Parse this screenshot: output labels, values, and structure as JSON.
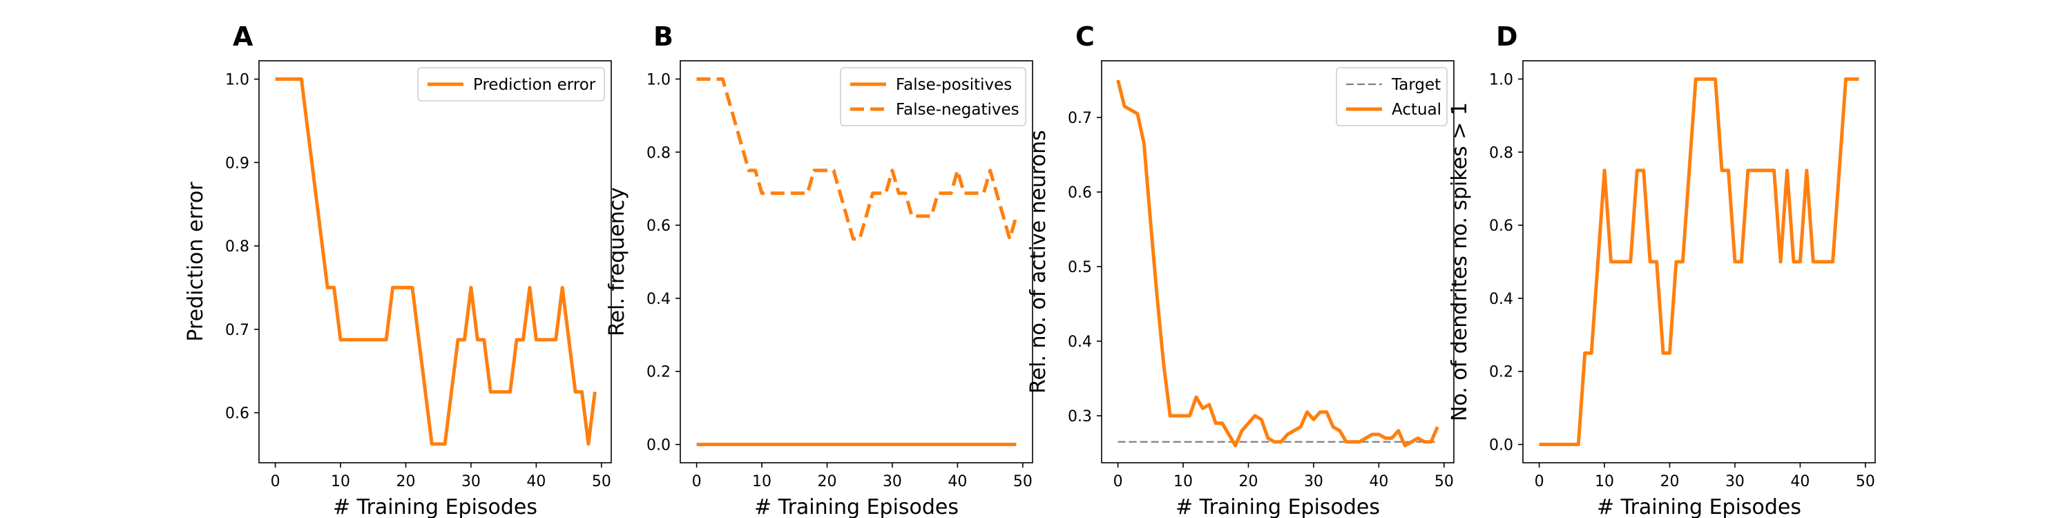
{
  "colors": {
    "series": "#ff7f0e",
    "target": "#7f7f7f",
    "axis": "#000000"
  },
  "chart_data": [
    {
      "letter": "A",
      "type": "line",
      "xlabel": "# Training Episodes",
      "ylabel": "Prediction error",
      "xlim": [
        -2.5,
        51.5
      ],
      "ylim": [
        0.54,
        1.022
      ],
      "xticks": [
        0,
        10,
        20,
        30,
        40,
        50
      ],
      "yticks": [
        0.6,
        0.7,
        0.8,
        0.9,
        1.0
      ],
      "ytick_labels": [
        "0.6",
        "0.7",
        "0.8",
        "0.9",
        "1.0"
      ],
      "legend": "top-right",
      "series": [
        {
          "name": "Prediction error",
          "style": "solid",
          "x": [
            0,
            1,
            2,
            3,
            4,
            5,
            6,
            7,
            8,
            9,
            10,
            11,
            12,
            13,
            14,
            15,
            16,
            17,
            18,
            19,
            20,
            21,
            22,
            23,
            24,
            25,
            26,
            27,
            28,
            29,
            30,
            31,
            32,
            33,
            34,
            35,
            36,
            37,
            38,
            39,
            40,
            41,
            42,
            43,
            44,
            45,
            46,
            47,
            48,
            49
          ],
          "y": [
            1.0,
            1.0,
            1.0,
            1.0,
            1.0,
            0.9375,
            0.875,
            0.8125,
            0.75,
            0.75,
            0.6875,
            0.6875,
            0.6875,
            0.6875,
            0.6875,
            0.6875,
            0.6875,
            0.6875,
            0.75,
            0.75,
            0.75,
            0.75,
            0.6875,
            0.625,
            0.5625,
            0.5625,
            0.5625,
            0.625,
            0.6875,
            0.6875,
            0.75,
            0.6875,
            0.6875,
            0.625,
            0.625,
            0.625,
            0.625,
            0.6875,
            0.6875,
            0.75,
            0.6875,
            0.6875,
            0.6875,
            0.6875,
            0.75,
            0.6875,
            0.625,
            0.625,
            0.5625,
            0.625
          ]
        }
      ]
    },
    {
      "letter": "B",
      "type": "line",
      "xlabel": "# Training Episodes",
      "ylabel": "Rel. frequency",
      "xlim": [
        -2.5,
        51.5
      ],
      "ylim": [
        -0.05,
        1.05
      ],
      "xticks": [
        0,
        10,
        20,
        30,
        40,
        50
      ],
      "yticks": [
        0.0,
        0.2,
        0.4,
        0.6,
        0.8,
        1.0
      ],
      "ytick_labels": [
        "0.0",
        "0.2",
        "0.4",
        "0.6",
        "0.8",
        "1.0"
      ],
      "legend": "top-right",
      "series": [
        {
          "name": "False-positives",
          "style": "solid",
          "x": [
            0,
            49
          ],
          "y": [
            0.0,
            0.0
          ]
        },
        {
          "name": "False-negatives",
          "style": "dashed",
          "x": [
            0,
            1,
            2,
            3,
            4,
            5,
            6,
            7,
            8,
            9,
            10,
            11,
            12,
            13,
            14,
            15,
            16,
            17,
            18,
            19,
            20,
            21,
            22,
            23,
            24,
            25,
            26,
            27,
            28,
            29,
            30,
            31,
            32,
            33,
            34,
            35,
            36,
            37,
            38,
            39,
            40,
            41,
            42,
            43,
            44,
            45,
            46,
            47,
            48,
            49
          ],
          "y": [
            1.0,
            1.0,
            1.0,
            1.0,
            1.0,
            0.9375,
            0.875,
            0.8125,
            0.75,
            0.75,
            0.6875,
            0.6875,
            0.6875,
            0.6875,
            0.6875,
            0.6875,
            0.6875,
            0.6875,
            0.75,
            0.75,
            0.75,
            0.75,
            0.6875,
            0.625,
            0.5625,
            0.5625,
            0.625,
            0.6875,
            0.6875,
            0.6875,
            0.75,
            0.6875,
            0.6875,
            0.625,
            0.625,
            0.625,
            0.625,
            0.6875,
            0.6875,
            0.6875,
            0.75,
            0.6875,
            0.6875,
            0.6875,
            0.6875,
            0.75,
            0.6875,
            0.625,
            0.5625,
            0.625
          ]
        }
      ]
    },
    {
      "letter": "C",
      "type": "line",
      "xlabel": "# Training Episodes",
      "ylabel": "Rel. no. of active neurons",
      "xlim": [
        -2.5,
        51.5
      ],
      "ylim": [
        0.237,
        0.776
      ],
      "xticks": [
        0,
        10,
        20,
        30,
        40,
        50
      ],
      "yticks": [
        0.3,
        0.4,
        0.5,
        0.6,
        0.7
      ],
      "ytick_labels": [
        "0.3",
        "0.4",
        "0.5",
        "0.6",
        "0.7"
      ],
      "legend": "top-right",
      "series": [
        {
          "name": "Target",
          "style": "dashed-thin",
          "x": [
            0,
            49
          ],
          "y": [
            0.265,
            0.265
          ]
        },
        {
          "name": "Actual",
          "style": "solid",
          "x": [
            0,
            1,
            2,
            3,
            4,
            5,
            6,
            7,
            8,
            9,
            10,
            11,
            12,
            13,
            14,
            15,
            16,
            17,
            18,
            19,
            20,
            21,
            22,
            23,
            24,
            25,
            26,
            27,
            28,
            29,
            30,
            31,
            32,
            33,
            34,
            35,
            36,
            37,
            38,
            39,
            40,
            41,
            42,
            43,
            44,
            45,
            46,
            47,
            48,
            49
          ],
          "y": [
            0.75,
            0.715,
            0.71,
            0.705,
            0.665,
            0.56,
            0.46,
            0.37,
            0.3,
            0.3,
            0.3,
            0.3,
            0.325,
            0.31,
            0.315,
            0.29,
            0.29,
            0.275,
            0.26,
            0.28,
            0.29,
            0.3,
            0.295,
            0.27,
            0.265,
            0.265,
            0.275,
            0.28,
            0.285,
            0.305,
            0.295,
            0.305,
            0.305,
            0.285,
            0.28,
            0.265,
            0.265,
            0.265,
            0.27,
            0.275,
            0.275,
            0.27,
            0.27,
            0.28,
            0.26,
            0.265,
            0.27,
            0.265,
            0.265,
            0.285
          ]
        }
      ]
    },
    {
      "letter": "D",
      "type": "line",
      "xlabel": "# Training Episodes",
      "ylabel": "No. of dendrites no. spikes > 1",
      "xlim": [
        -2.5,
        51.5
      ],
      "ylim": [
        -0.05,
        1.05
      ],
      "xticks": [
        0,
        10,
        20,
        30,
        40,
        50
      ],
      "yticks": [
        0.0,
        0.2,
        0.4,
        0.6,
        0.8,
        1.0
      ],
      "ytick_labels": [
        "0.0",
        "0.2",
        "0.4",
        "0.6",
        "0.8",
        "1.0"
      ],
      "legend": "none",
      "series": [
        {
          "name": "",
          "style": "solid",
          "x": [
            0,
            1,
            2,
            3,
            4,
            5,
            6,
            7,
            8,
            9,
            10,
            11,
            12,
            13,
            14,
            15,
            16,
            17,
            18,
            19,
            20,
            21,
            22,
            23,
            24,
            25,
            26,
            27,
            28,
            29,
            30,
            31,
            32,
            33,
            34,
            35,
            36,
            37,
            38,
            39,
            40,
            41,
            42,
            43,
            44,
            45,
            46,
            47,
            48,
            49
          ],
          "y": [
            0.0,
            0.0,
            0.0,
            0.0,
            0.0,
            0.0,
            0.0,
            0.25,
            0.25,
            0.5,
            0.75,
            0.5,
            0.5,
            0.5,
            0.5,
            0.75,
            0.75,
            0.5,
            0.5,
            0.25,
            0.25,
            0.5,
            0.5,
            0.75,
            1.0,
            1.0,
            1.0,
            1.0,
            0.75,
            0.75,
            0.5,
            0.5,
            0.75,
            0.75,
            0.75,
            0.75,
            0.75,
            0.5,
            0.75,
            0.5,
            0.5,
            0.75,
            0.5,
            0.5,
            0.5,
            0.5,
            0.75,
            1.0,
            1.0,
            1.0
          ]
        }
      ]
    }
  ]
}
